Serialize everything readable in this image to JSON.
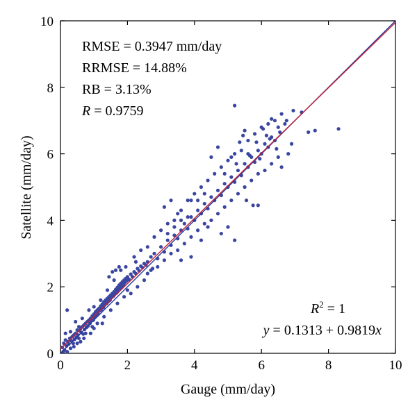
{
  "chart_data": {
    "type": "scatter",
    "xlabel": "Gauge (mm/day)",
    "ylabel": "Satellite (mm/day)",
    "xlim": [
      0,
      10
    ],
    "ylim": [
      0,
      10
    ],
    "xticks": [
      "0",
      "2",
      "4",
      "6",
      "8",
      "10"
    ],
    "yticks": [
      "0",
      "2",
      "4",
      "6",
      "8",
      "10"
    ],
    "grid": false,
    "legend": "none",
    "stats": {
      "rmse": "RMSE = 0.3947 mm/day",
      "rrmse": "RRMSE = 14.88%",
      "rb": "RB = 3.13%",
      "r_symbol": "R",
      "r_value": " = 0.9759",
      "r2_symbol": "R",
      "r2_sup": "2",
      "r2_value": " = 1",
      "eq_y": "y",
      "eq_mid": " = 0.1313 + 0.9819",
      "eq_x": "x"
    },
    "regression": {
      "intercept": 0.1313,
      "slope": 0.9819,
      "color": "#c0203a"
    },
    "identity_line": {
      "color": "#2a3a99"
    },
    "point_color": "#3a46a0",
    "points": [
      [
        0.05,
        0.18
      ],
      [
        0.08,
        0.05
      ],
      [
        0.1,
        0.3
      ],
      [
        0.12,
        0.1
      ],
      [
        0.15,
        0.4
      ],
      [
        0.18,
        0.22
      ],
      [
        0.2,
        0.05
      ],
      [
        0.22,
        0.35
      ],
      [
        0.25,
        0.28
      ],
      [
        0.28,
        0.45
      ],
      [
        0.3,
        0.15
      ],
      [
        0.32,
        0.38
      ],
      [
        0.35,
        0.5
      ],
      [
        0.38,
        0.3
      ],
      [
        0.4,
        0.55
      ],
      [
        0.42,
        0.42
      ],
      [
        0.45,
        0.6
      ],
      [
        0.48,
        0.48
      ],
      [
        0.5,
        0.7
      ],
      [
        0.52,
        0.55
      ],
      [
        0.55,
        0.45
      ],
      [
        0.58,
        0.68
      ],
      [
        0.6,
        0.75
      ],
      [
        0.62,
        0.62
      ],
      [
        0.65,
        0.8
      ],
      [
        0.68,
        0.58
      ],
      [
        0.7,
        0.85
      ],
      [
        0.72,
        0.72
      ],
      [
        0.75,
        0.9
      ],
      [
        0.78,
        0.78
      ],
      [
        0.8,
        0.95
      ],
      [
        0.82,
        0.82
      ],
      [
        0.85,
        1.0
      ],
      [
        0.88,
        0.9
      ],
      [
        0.9,
        1.05
      ],
      [
        0.92,
        0.98
      ],
      [
        0.95,
        1.12
      ],
      [
        0.98,
        1.0
      ],
      [
        1.0,
        1.18
      ],
      [
        1.02,
        1.08
      ],
      [
        1.05,
        1.25
      ],
      [
        1.08,
        1.15
      ],
      [
        1.1,
        1.3
      ],
      [
        1.12,
        1.2
      ],
      [
        1.15,
        1.35
      ],
      [
        1.18,
        1.28
      ],
      [
        1.2,
        1.42
      ],
      [
        1.22,
        1.32
      ],
      [
        1.25,
        1.48
      ],
      [
        1.28,
        1.38
      ],
      [
        1.3,
        1.55
      ],
      [
        1.32,
        1.45
      ],
      [
        1.35,
        1.6
      ],
      [
        1.38,
        1.5
      ],
      [
        1.4,
        1.65
      ],
      [
        1.42,
        1.55
      ],
      [
        1.45,
        1.7
      ],
      [
        1.48,
        1.6
      ],
      [
        1.5,
        1.75
      ],
      [
        1.52,
        1.68
      ],
      [
        1.55,
        1.8
      ],
      [
        1.58,
        1.72
      ],
      [
        1.6,
        1.85
      ],
      [
        1.62,
        1.78
      ],
      [
        1.65,
        1.92
      ],
      [
        1.68,
        1.82
      ],
      [
        1.7,
        1.98
      ],
      [
        1.72,
        1.88
      ],
      [
        1.75,
        2.05
      ],
      [
        1.78,
        1.95
      ],
      [
        1.8,
        2.1
      ],
      [
        1.82,
        2.0
      ],
      [
        1.85,
        2.15
      ],
      [
        1.88,
        2.05
      ],
      [
        1.9,
        2.2
      ],
      [
        1.92,
        2.12
      ],
      [
        1.95,
        2.25
      ],
      [
        1.98,
        2.18
      ],
      [
        2.0,
        2.3
      ],
      [
        2.05,
        2.22
      ],
      [
        2.1,
        2.38
      ],
      [
        2.15,
        2.3
      ],
      [
        2.2,
        2.45
      ],
      [
        2.25,
        2.4
      ],
      [
        2.3,
        2.55
      ],
      [
        2.35,
        2.48
      ],
      [
        2.4,
        2.62
      ],
      [
        2.45,
        2.58
      ],
      [
        2.5,
        2.7
      ],
      [
        2.55,
        2.65
      ],
      [
        1.0,
        1.4
      ],
      [
        1.1,
        0.9
      ],
      [
        1.2,
        1.6
      ],
      [
        1.3,
        1.1
      ],
      [
        1.4,
        1.9
      ],
      [
        1.5,
        1.3
      ],
      [
        1.6,
        2.2
      ],
      [
        1.7,
        1.5
      ],
      [
        1.8,
        2.5
      ],
      [
        1.9,
        1.7
      ],
      [
        1.55,
        2.45
      ],
      [
        1.65,
        2.5
      ],
      [
        1.45,
        2.3
      ],
      [
        1.75,
        2.6
      ],
      [
        1.25,
        0.9
      ],
      [
        1.0,
        0.75
      ],
      [
        0.9,
        0.6
      ],
      [
        0.7,
        0.45
      ],
      [
        0.6,
        0.35
      ],
      [
        0.5,
        0.3
      ],
      [
        0.2,
        1.3
      ],
      [
        0.15,
        0.6
      ],
      [
        0.3,
        0.65
      ],
      [
        0.4,
        0.2
      ],
      [
        0.45,
        0.95
      ],
      [
        0.55,
        0.8
      ],
      [
        0.65,
        1.05
      ],
      [
        0.75,
        0.6
      ],
      [
        0.85,
        1.3
      ],
      [
        0.95,
        0.8
      ],
      [
        2.6,
        2.75
      ],
      [
        2.7,
        2.9
      ],
      [
        2.8,
        3.0
      ],
      [
        2.9,
        2.85
      ],
      [
        3.0,
        3.2
      ],
      [
        3.1,
        3.05
      ],
      [
        3.2,
        3.4
      ],
      [
        3.3,
        3.25
      ],
      [
        3.4,
        3.55
      ],
      [
        3.5,
        3.45
      ],
      [
        2.6,
        3.2
      ],
      [
        2.7,
        2.5
      ],
      [
        2.8,
        3.5
      ],
      [
        2.9,
        2.6
      ],
      [
        3.0,
        3.7
      ],
      [
        3.1,
        2.8
      ],
      [
        3.2,
        3.9
      ],
      [
        3.3,
        3.0
      ],
      [
        3.4,
        4.0
      ],
      [
        3.5,
        3.1
      ],
      [
        2.2,
        2.9
      ],
      [
        2.4,
        3.1
      ],
      [
        2.3,
        2.0
      ],
      [
        2.5,
        2.2
      ],
      [
        2.1,
        1.8
      ],
      [
        2.0,
        1.9
      ],
      [
        1.95,
        2.6
      ],
      [
        2.25,
        2.75
      ],
      [
        2.6,
        2.4
      ],
      [
        2.75,
        2.55
      ],
      [
        3.6,
        3.7
      ],
      [
        3.7,
        3.9
      ],
      [
        3.8,
        3.75
      ],
      [
        3.9,
        4.1
      ],
      [
        4.0,
        4.0
      ],
      [
        4.1,
        4.3
      ],
      [
        4.2,
        4.2
      ],
      [
        4.3,
        4.5
      ],
      [
        4.4,
        4.35
      ],
      [
        4.5,
        4.7
      ],
      [
        3.6,
        4.3
      ],
      [
        3.7,
        3.3
      ],
      [
        3.8,
        4.6
      ],
      [
        3.9,
        3.5
      ],
      [
        4.0,
        4.8
      ],
      [
        4.1,
        3.7
      ],
      [
        4.2,
        5.0
      ],
      [
        4.3,
        3.9
      ],
      [
        4.4,
        5.2
      ],
      [
        4.5,
        4.0
      ],
      [
        3.1,
        4.4
      ],
      [
        3.3,
        4.6
      ],
      [
        3.5,
        4.2
      ],
      [
        3.2,
        3.6
      ],
      [
        3.4,
        3.8
      ],
      [
        3.6,
        4.0
      ],
      [
        3.8,
        4.1
      ],
      [
        3.9,
        4.6
      ],
      [
        4.1,
        4.6
      ],
      [
        4.3,
        4.8
      ],
      [
        4.6,
        4.6
      ],
      [
        4.7,
        4.9
      ],
      [
        4.8,
        4.75
      ],
      [
        4.9,
        5.1
      ],
      [
        5.0,
        5.0
      ],
      [
        5.1,
        5.3
      ],
      [
        5.2,
        5.15
      ],
      [
        5.3,
        5.5
      ],
      [
        5.4,
        5.35
      ],
      [
        5.5,
        5.7
      ],
      [
        4.6,
        5.4
      ],
      [
        4.7,
        4.2
      ],
      [
        4.8,
        5.6
      ],
      [
        4.9,
        4.4
      ],
      [
        5.0,
        5.8
      ],
      [
        5.1,
        4.6
      ],
      [
        5.2,
        6.0
      ],
      [
        5.3,
        4.8
      ],
      [
        5.4,
        6.1
      ],
      [
        5.5,
        5.0
      ],
      [
        4.5,
        5.9
      ],
      [
        4.7,
        6.2
      ],
      [
        4.9,
        5.4
      ],
      [
        5.0,
        3.8
      ],
      [
        5.2,
        3.4
      ],
      [
        4.8,
        3.6
      ],
      [
        4.2,
        3.4
      ],
      [
        4.4,
        3.8
      ],
      [
        3.9,
        2.9
      ],
      [
        3.6,
        2.8
      ],
      [
        5.6,
        5.6
      ],
      [
        5.7,
        5.9
      ],
      [
        5.8,
        5.75
      ],
      [
        5.9,
        6.1
      ],
      [
        6.0,
        6.0
      ],
      [
        6.1,
        6.3
      ],
      [
        6.2,
        6.2
      ],
      [
        6.3,
        6.5
      ],
      [
        6.4,
        6.4
      ],
      [
        6.5,
        6.8
      ],
      [
        5.6,
        6.4
      ],
      [
        5.7,
        5.2
      ],
      [
        5.8,
        6.6
      ],
      [
        5.9,
        5.4
      ],
      [
        6.0,
        6.8
      ],
      [
        6.1,
        5.5
      ],
      [
        6.2,
        6.9
      ],
      [
        6.3,
        5.7
      ],
      [
        6.4,
        7.0
      ],
      [
        6.5,
        5.9
      ],
      [
        5.5,
        6.7
      ],
      [
        5.6,
        6.0
      ],
      [
        5.75,
        4.45
      ],
      [
        5.9,
        4.45
      ],
      [
        5.55,
        4.6
      ],
      [
        6.6,
        5.6
      ],
      [
        6.8,
        6.0
      ],
      [
        6.7,
        6.9
      ],
      [
        6.6,
        7.2
      ],
      [
        6.9,
        6.3
      ],
      [
        5.2,
        7.45
      ],
      [
        7.2,
        7.25
      ],
      [
        7.4,
        6.65
      ],
      [
        7.6,
        6.7
      ],
      [
        8.3,
        6.75
      ],
      [
        6.95,
        7.3
      ],
      [
        6.3,
        7.05
      ],
      [
        6.75,
        7.0
      ],
      [
        5.35,
        6.35
      ],
      [
        5.45,
        6.55
      ],
      [
        6.05,
        6.75
      ],
      [
        6.25,
        6.45
      ],
      [
        5.65,
        5.95
      ],
      [
        6.45,
        6.15
      ],
      [
        5.95,
        5.85
      ],
      [
        6.15,
        6.55
      ],
      [
        5.85,
        6.35
      ],
      [
        6.55,
        6.65
      ],
      [
        5.25,
        5.7
      ],
      [
        5.1,
        5.9
      ]
    ]
  }
}
